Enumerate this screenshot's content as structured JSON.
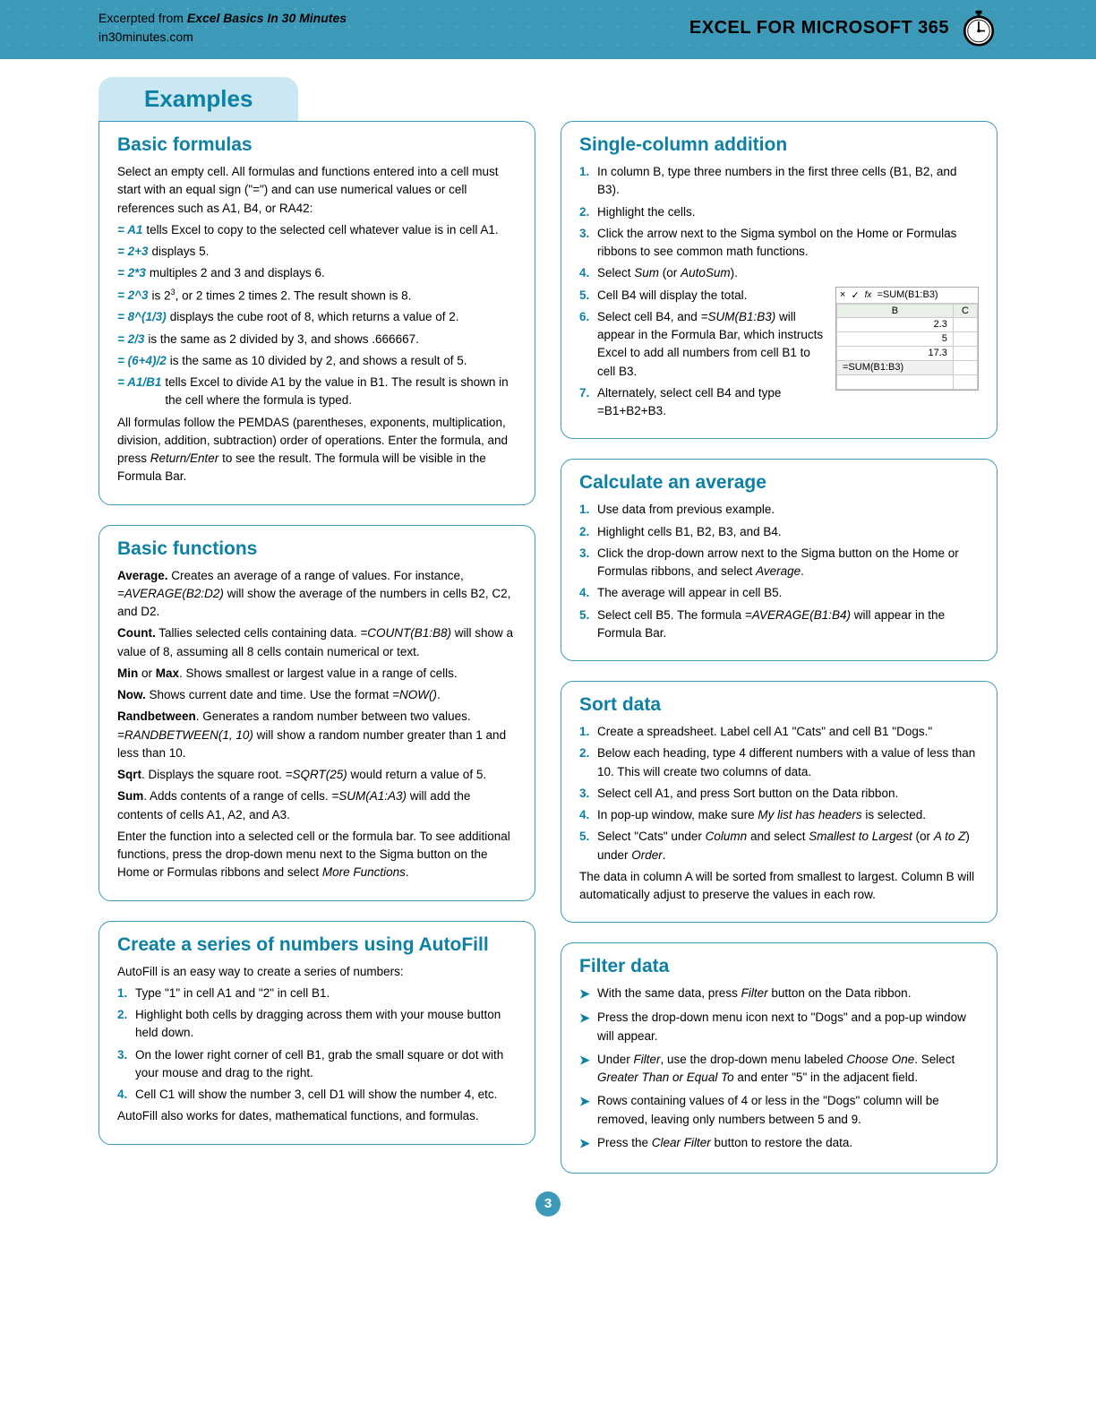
{
  "header": {
    "excerpt_prefix": "Excerpted from ",
    "book_title": "Excel Basics In 30 Minutes",
    "site": "in30minutes.com",
    "product": "EXCEL FOR MICROSOFT 365"
  },
  "tab": "Examples",
  "colors": {
    "header_bg": "#3c9ab8",
    "tab_bg": "#cbe8f2",
    "accent": "#0d80a5",
    "card_border": "#3c9ab8"
  },
  "left": {
    "basic_formulas": {
      "title": "Basic formulas",
      "intro": "Select an empty cell. All formulas and functions entered into a cell must start with an equal sign (\"=\") and can use numerical values or cell references such as A1, B4, or RA42:",
      "items": [
        {
          "prefix": "= A1",
          "rest": " tells Excel to copy to the selected cell whatever value is in cell A1."
        },
        {
          "prefix": "= 2+3",
          "rest": " displays 5."
        },
        {
          "prefix": "= 2*3",
          "rest": " multiples 2 and 3 and displays 6."
        },
        {
          "prefix": "= 2^3",
          "rest_html": " is 2<span class=\"sup\">3</span>, or 2 times 2 times 2. The result shown is 8."
        },
        {
          "prefix": "= 8^(1/3)",
          "rest": " displays the cube root of 8, which returns a value of 2."
        },
        {
          "prefix": "= 2/3",
          "rest": " is the same as 2 divided by 3, and shows .666667."
        },
        {
          "prefix": "= (6+4)/2",
          "rest": " is the same as 10 divided by 2, and shows a result of 5."
        },
        {
          "prefix": "= A1/B1",
          "rest": " tells Excel to divide A1 by the value in B1. The result is shown in the cell where the formula is typed."
        }
      ],
      "outro_html": "All formulas follow the PEMDAS (parentheses, exponents, multiplication, division, addition, subtraction) order of operations. Enter the formula, and press <span class=\"i\">Return/Enter</span> to see the result. The formula will be visible in the Formula Bar."
    },
    "basic_functions": {
      "title": "Basic functions",
      "items": [
        "<span class=\"b\">Average.</span> Creates an average of a range of values. For instance, <span class=\"i\">=AVERAGE(B2:D2)</span> will show the average of the numbers in cells B2, C2, and D2.",
        "<span class=\"b\">Count.</span> Tallies selected cells containing data. <span class=\"i\">=COUNT(B1:B8)</span> will show a value of 8, assuming all 8 cells contain numerical or text.",
        "<span class=\"b\">Min</span> or <span class=\"b\">Max</span>. Shows smallest or largest value in a range of cells.",
        "<span class=\"b\">Now.</span> Shows current date and time. Use the format <span class=\"i\">=NOW()</span>.",
        "<span class=\"b\">Randbetween</span>. Generates a random number between two values. <span class=\"i\">=RANDBETWEEN(1, 10)</span> will show a random number greater than 1 and less than 10.",
        "<span class=\"b\">Sqrt</span>. Displays the square root. <span class=\"i\">=SQRT(25)</span> would return a value of 5.",
        "<span class=\"b\">Sum</span>. Adds contents of a range of cells. <span class=\"i\">=SUM(A1:A3)</span> will add the contents of cells A1, A2, and A3."
      ],
      "outro_html": "Enter the function into a selected cell or the formula bar. To see additional functions, press the drop-down menu next to the Sigma button on the Home or Formulas ribbons and select <span class=\"i\">More Functions</span>."
    },
    "autofill": {
      "title": "Create a series of numbers using AutoFill",
      "intro": "AutoFill is an easy way to create a series of numbers:",
      "steps": [
        "Type \"1\" in cell A1 and \"2\" in cell B1.",
        "Highlight both cells by dragging across them with your mouse button held down.",
        "On the lower right corner of cell B1, grab the small square or dot with your mouse and drag to the right.",
        "Cell C1 will show the number 3, cell D1 will show the number 4, etc."
      ],
      "outro": "AutoFill also works for dates, mathematical functions, and formulas."
    }
  },
  "right": {
    "single_column": {
      "title": "Single-column addition",
      "excel_snip": {
        "formula": "=SUM(B1:B3)",
        "col_b": "B",
        "col_c": "C",
        "rows": [
          "2.3",
          "5",
          "17.3",
          "=SUM(B1:B3)"
        ]
      },
      "steps_html": [
        "In column B, type three numbers in the first three cells (B1, B2, and B3).",
        "Highlight the cells.",
        "Click the arrow next to the Sigma symbol on the Home or Formulas ribbons to see common math functions.",
        "Select <span class=\"i\">Sum</span> (or <span class=\"i\">AutoSum</span>).",
        "Cell B4 will display the total.",
        "Select cell B4, and <span class=\"i\">=SUM(B1:B3)</span> will appear in the Formula Bar, which instructs Excel to add all numbers from cell B1 to cell B3.",
        "Alternately, select cell B4 and type =B1+B2+B3."
      ]
    },
    "average": {
      "title": "Calculate an average",
      "steps_html": [
        "Use data from previous example.",
        "Highlight cells B1, B2, B3, and B4.",
        "Click the drop-down arrow next to the Sigma button on the Home or Formulas ribbons, and select <span class=\"i\">Average</span>.",
        "The average will appear in cell B5.",
        "Select cell B5. The formula <span class=\"i\">=AVERAGE(B1:B4)</span> will appear in the Formula Bar."
      ]
    },
    "sort": {
      "title": "Sort data",
      "steps_html": [
        "Create a spreadsheet. Label cell A1 \"Cats\" and cell B1 \"Dogs.\"",
        "Below each heading, type 4 different numbers with a value of less than 10. This will create two columns of data.",
        "Select cell A1, and press Sort button on the Data ribbon.",
        "In pop-up window, make sure <span class=\"i\">My list has headers</span> is selected.",
        "Select \"Cats\" under <span class=\"i\">Column</span> and select <span class=\"i\">Smallest to Largest</span> (or <span class=\"i\">A to Z</span>) under <span class=\"i\">Order</span>."
      ],
      "outro": "The data in column A will be sorted from smallest to largest. Column B will automatically adjust to preserve the values in each row."
    },
    "filter": {
      "title": "Filter data",
      "items_html": [
        "With the same data, press <span class=\"i\">Filter</span> button on the Data ribbon.",
        "Press the drop-down menu icon next to \"Dogs\" and a pop-up window will appear.",
        "Under <span class=\"i\">Filter</span>, use the drop-down menu labeled <span class=\"i\">Choose One</span>. Select <span class=\"i\">Greater Than or Equal To</span> and enter \"5\" in the adjacent field.",
        "Rows containing values of 4 or less in the \"Dogs\" column will be removed, leaving only numbers between 5 and 9.",
        "Press the <span class=\"i\">Clear Filter</span> button to restore the data."
      ]
    }
  },
  "page_number": "3"
}
